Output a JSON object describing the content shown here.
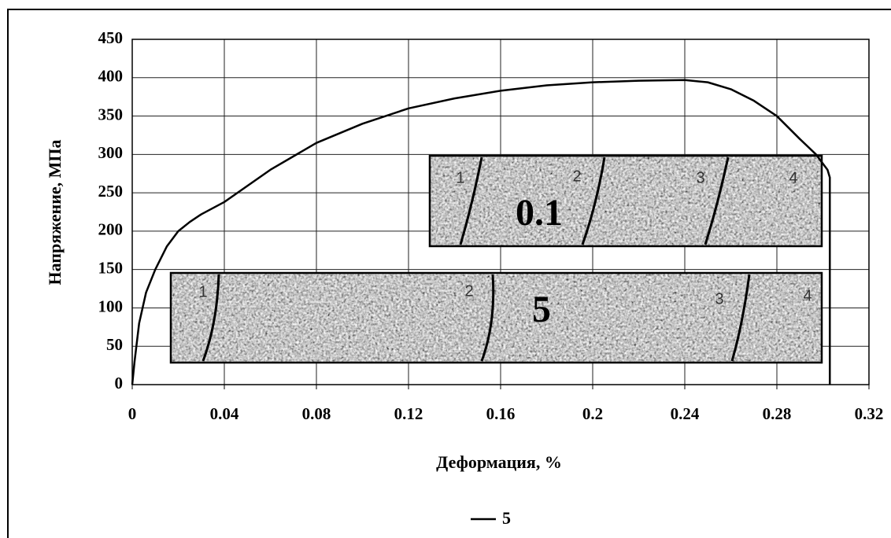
{
  "chart_data": {
    "type": "line",
    "xlabel": "Деформация, %",
    "ylabel": "Напряжение, МПа",
    "x": [
      0,
      0.001,
      0.003,
      0.006,
      0.01,
      0.015,
      0.02,
      0.025,
      0.03,
      0.04,
      0.06,
      0.08,
      0.1,
      0.12,
      0.14,
      0.16,
      0.18,
      0.2,
      0.22,
      0.24,
      0.25,
      0.26,
      0.27,
      0.28,
      0.29,
      0.297,
      0.302,
      0.303,
      0.303
    ],
    "series": [
      {
        "name": "5",
        "color": "#000000",
        "values": [
          0,
          30,
          80,
          120,
          150,
          180,
          200,
          212,
          222,
          238,
          280,
          315,
          340,
          360,
          373,
          383,
          390,
          394,
          396,
          397,
          394,
          385,
          370,
          350,
          320,
          300,
          280,
          270,
          0
        ]
      }
    ],
    "xlim": [
      0,
      0.32
    ],
    "xticks": [
      0,
      0.04,
      0.08,
      0.12,
      0.16,
      0.2,
      0.24,
      0.28,
      0.32
    ],
    "ylim": [
      0,
      450
    ],
    "yticks": [
      0,
      50,
      100,
      150,
      200,
      250,
      300,
      350,
      400,
      450
    ],
    "grid": true,
    "insets": [
      {
        "label": "0.1",
        "zones": [
          "1",
          "2",
          "3",
          "4"
        ]
      },
      {
        "label": "5",
        "zones": [
          "1",
          "2",
          "3",
          "4"
        ]
      }
    ]
  }
}
